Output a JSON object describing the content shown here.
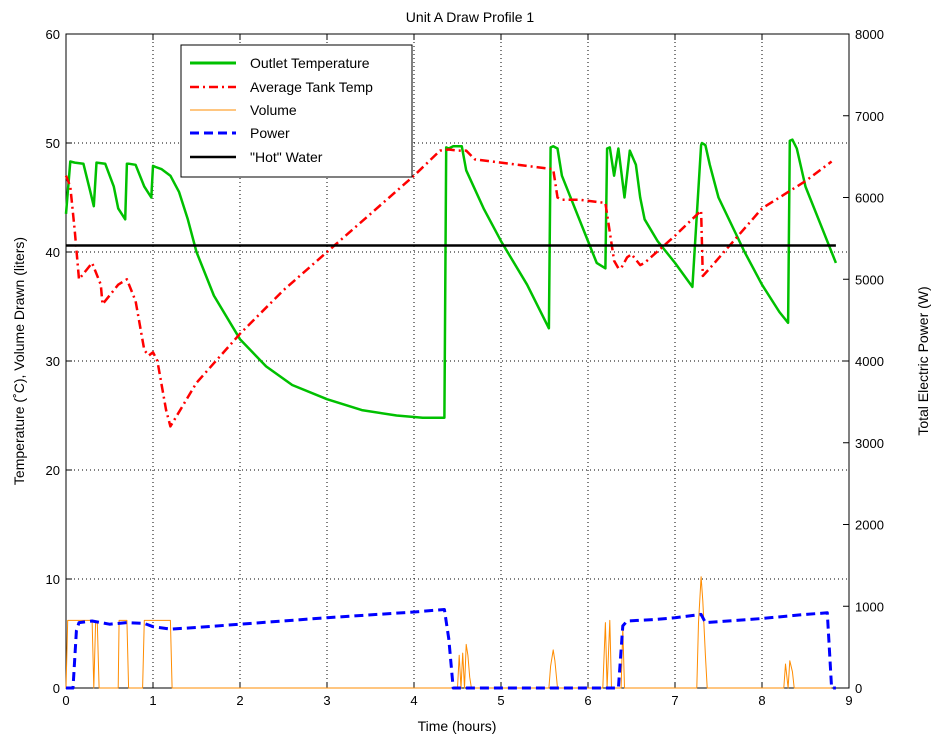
{
  "chart_data": {
    "type": "line",
    "title": "Unit A Draw Profile 1",
    "xlabel": "Time (hours)",
    "ylabel_left": "Temperature (˚C), Volume Drawn (liters)",
    "ylabel_right": "Total Electric Power (W)",
    "xlim": [
      0,
      9
    ],
    "ylim_left": [
      0,
      60
    ],
    "ylim_right": [
      0,
      8000
    ],
    "x_ticks": [
      "0",
      "1",
      "2",
      "3",
      "4",
      "5",
      "6",
      "7",
      "8",
      "9"
    ],
    "y_ticks_left": [
      "0",
      "10",
      "20",
      "30",
      "40",
      "50",
      "60"
    ],
    "y_ticks_right": [
      "0",
      "1000",
      "2000",
      "3000",
      "4000",
      "5000",
      "6000",
      "7000",
      "8000"
    ],
    "grid": true,
    "legend_position": "top-left",
    "series": [
      {
        "name": "Outlet Temperature",
        "axis": "left",
        "color": "#00c000",
        "style": "solid",
        "x": [
          0,
          0.05,
          0.1,
          0.2,
          0.28,
          0.32,
          0.35,
          0.45,
          0.55,
          0.6,
          0.68,
          0.7,
          0.72,
          0.8,
          0.9,
          0.98,
          1.0,
          1.03,
          1.1,
          1.2,
          1.3,
          1.4,
          1.5,
          1.7,
          2.0,
          2.3,
          2.6,
          3.0,
          3.4,
          3.8,
          4.1,
          4.35,
          4.37,
          4.4,
          4.45,
          4.55,
          4.6,
          4.8,
          5.0,
          5.3,
          5.55,
          5.57,
          5.6,
          5.65,
          5.7,
          5.9,
          6.0,
          6.1,
          6.2,
          6.22,
          6.25,
          6.3,
          6.35,
          6.42,
          6.48,
          6.55,
          6.6,
          6.65,
          6.8,
          7.0,
          7.2,
          7.3,
          7.31,
          7.35,
          7.4,
          7.5,
          7.8,
          8.0,
          8.2,
          8.3,
          8.32,
          8.35,
          8.4,
          8.5,
          8.7,
          8.85
        ],
        "values": [
          43.5,
          48.3,
          48.2,
          48.1,
          45.5,
          44.2,
          48.2,
          48.1,
          46.0,
          44.0,
          43.0,
          48.1,
          48.1,
          48.0,
          46.0,
          45.0,
          47.9,
          47.8,
          47.6,
          47.0,
          45.5,
          43.0,
          40.0,
          36.0,
          32.0,
          29.5,
          27.8,
          26.5,
          25.5,
          25.0,
          24.8,
          24.8,
          49.6,
          49.5,
          49.7,
          49.7,
          47.5,
          44.0,
          41.0,
          37.0,
          33.0,
          49.6,
          49.7,
          49.5,
          47.0,
          43.0,
          41.0,
          39.0,
          38.5,
          49.5,
          49.6,
          47.0,
          49.5,
          45.0,
          49.3,
          48.0,
          45.0,
          43.0,
          41.0,
          39.0,
          36.8,
          49.8,
          50.0,
          49.8,
          48.0,
          45.0,
          40.0,
          37.0,
          34.5,
          33.5,
          50.2,
          50.3,
          49.5,
          46.0,
          42.0,
          39.0
        ]
      },
      {
        "name": "Average Tank Temp",
        "axis": "left",
        "color": "#ff0000",
        "style": "dashdot",
        "x": [
          0,
          0.05,
          0.1,
          0.15,
          0.3,
          0.4,
          0.42,
          0.5,
          0.6,
          0.7,
          0.8,
          0.9,
          0.95,
          1.0,
          1.05,
          1.15,
          1.2,
          1.5,
          2.0,
          2.5,
          3.0,
          3.5,
          4.0,
          4.3,
          4.4,
          4.5,
          4.6,
          4.7,
          5.0,
          5.3,
          5.6,
          5.65,
          5.7,
          5.8,
          5.9,
          6.1,
          6.2,
          6.3,
          6.35,
          6.38,
          6.45,
          6.5,
          6.6,
          6.65,
          7.0,
          7.3,
          7.32,
          7.4,
          8.0,
          8.5,
          8.8
        ],
        "values": [
          47.0,
          46.0,
          42.0,
          37.5,
          39.0,
          37.0,
          35.2,
          36.0,
          37.0,
          37.5,
          35.5,
          31.0,
          30.5,
          30.8,
          30.0,
          25.5,
          24.0,
          28.0,
          32.5,
          36.5,
          40.0,
          43.5,
          47.0,
          49.3,
          49.4,
          49.3,
          49.3,
          48.5,
          48.2,
          47.9,
          47.6,
          45.0,
          44.8,
          44.8,
          44.8,
          44.6,
          44.5,
          39.2,
          38.5,
          38.5,
          39.5,
          39.8,
          38.8,
          39.0,
          41.5,
          43.8,
          37.8,
          38.5,
          44.0,
          46.5,
          48.3
        ]
      },
      {
        "name": "Volume",
        "axis": "left",
        "color": "#ff8c00",
        "style": "solid",
        "x": [
          0,
          0.02,
          0.04,
          0.3,
          0.32,
          0.34,
          0.36,
          0.38,
          0.39,
          0.41,
          0.43,
          0.4,
          0.42,
          0.6,
          0.61,
          0.63,
          0.7,
          0.72,
          0.88,
          0.9,
          0.98,
          1.0,
          1.02,
          1.2,
          1.22,
          4.2,
          4.3,
          4.32,
          4.34,
          4.5,
          4.52,
          4.54,
          4.56,
          4.58,
          4.6,
          4.62,
          4.64,
          4.66,
          4.7,
          5.5,
          5.55,
          5.57,
          5.6,
          5.62,
          5.65,
          5.67,
          5.7,
          6.15,
          6.17,
          6.2,
          6.22,
          6.25,
          6.27,
          6.3,
          6.35,
          6.38,
          6.4,
          6.42,
          6.45,
          6.5,
          7.2,
          7.25,
          7.27,
          7.3,
          7.32,
          7.35,
          7.37,
          7.4,
          8.2,
          8.25,
          8.27,
          8.3,
          8.32,
          8.35,
          8.37,
          8.4,
          8.8
        ],
        "values": [
          0,
          6.2,
          6.2,
          6.2,
          0,
          6.0,
          6.0,
          0,
          0,
          0,
          0,
          0,
          0,
          0,
          6.2,
          6.2,
          6.2,
          0,
          0,
          6.2,
          6.2,
          6.2,
          6.2,
          6.2,
          0,
          0,
          0,
          0,
          0,
          0,
          3.0,
          0,
          3.2,
          0,
          4.0,
          3.0,
          1.0,
          0,
          0,
          0,
          0,
          2.0,
          3.5,
          2.5,
          0,
          0,
          0,
          0,
          0,
          6.0,
          0,
          6.2,
          0,
          0,
          0,
          0,
          5.5,
          0,
          0,
          0,
          0,
          0,
          6.0,
          10.2,
          8.0,
          3.0,
          0,
          0,
          0,
          0,
          2.2,
          0,
          2.5,
          1.5,
          0,
          0,
          0
        ]
      },
      {
        "name": "Power",
        "axis": "right",
        "color": "#0000ff",
        "style": "dashed",
        "x": [
          0,
          0.08,
          0.12,
          0.15,
          0.3,
          0.5,
          0.7,
          0.9,
          1.0,
          1.2,
          1.5,
          2.0,
          3.0,
          4.0,
          4.35,
          4.4,
          4.45,
          5.0,
          6.0,
          6.35,
          6.4,
          6.45,
          6.8,
          7.0,
          7.3,
          7.35,
          8.0,
          8.5,
          8.75,
          8.8,
          8.85
        ],
        "values": [
          0,
          0,
          700,
          800,
          820,
          780,
          800,
          790,
          750,
          720,
          740,
          780,
          860,
          930,
          960,
          600,
          0,
          0,
          0,
          0,
          760,
          820,
          840,
          860,
          900,
          800,
          850,
          900,
          920,
          0,
          0
        ]
      },
      {
        "name": "\"Hot\" Water",
        "axis": "left",
        "color": "#000000",
        "style": "solid",
        "x": [
          0,
          8.85
        ],
        "values": [
          40.6,
          40.6
        ]
      }
    ]
  }
}
